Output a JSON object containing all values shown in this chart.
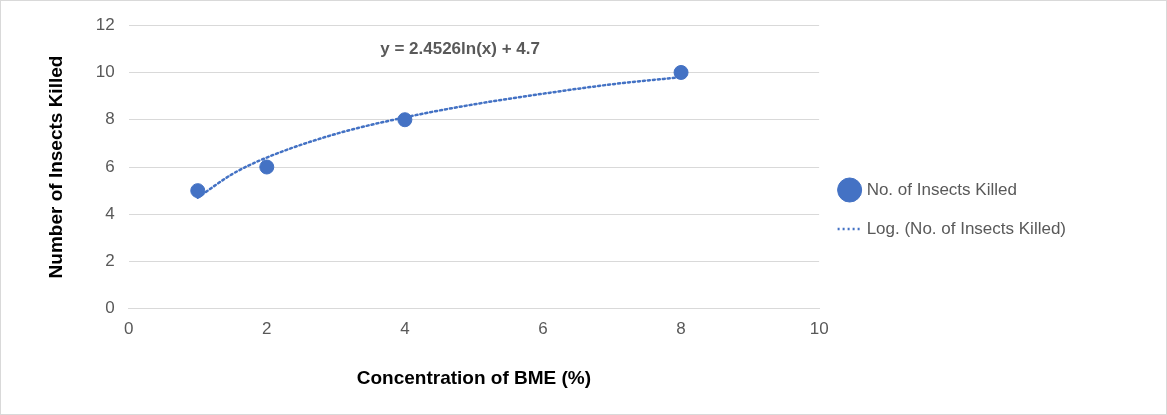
{
  "chart_data": {
    "type": "scatter",
    "xlabel": "Concentration of BME (%)",
    "ylabel": "Number of Insects Killed",
    "series": [
      {
        "name": "No. of Insects Killed",
        "color": "#4472c4",
        "x": [
          1,
          2,
          4,
          8
        ],
        "values": [
          5,
          6,
          8,
          10
        ],
        "marker": "circle"
      },
      {
        "name": "Log. (No. of Insects Killed)",
        "type": "line",
        "color": "#4472c4",
        "x": [
          1,
          1.5,
          2,
          3,
          4,
          5,
          6,
          7,
          8
        ],
        "values": [
          4.7,
          5.7,
          6.4,
          7.4,
          8.1,
          8.65,
          9.1,
          9.5,
          9.8
        ],
        "line_style": "dotted",
        "marker": "none"
      }
    ],
    "xlim": [
      0,
      10
    ],
    "xticks": [
      0,
      2,
      4,
      6,
      8,
      10
    ],
    "ylim": [
      0,
      12
    ],
    "yticks": [
      0,
      2,
      4,
      6,
      8,
      10,
      12
    ],
    "grid": "y",
    "legend": "right",
    "annotations": [
      "y = 2.4526ln(x) + 4.7"
    ]
  }
}
